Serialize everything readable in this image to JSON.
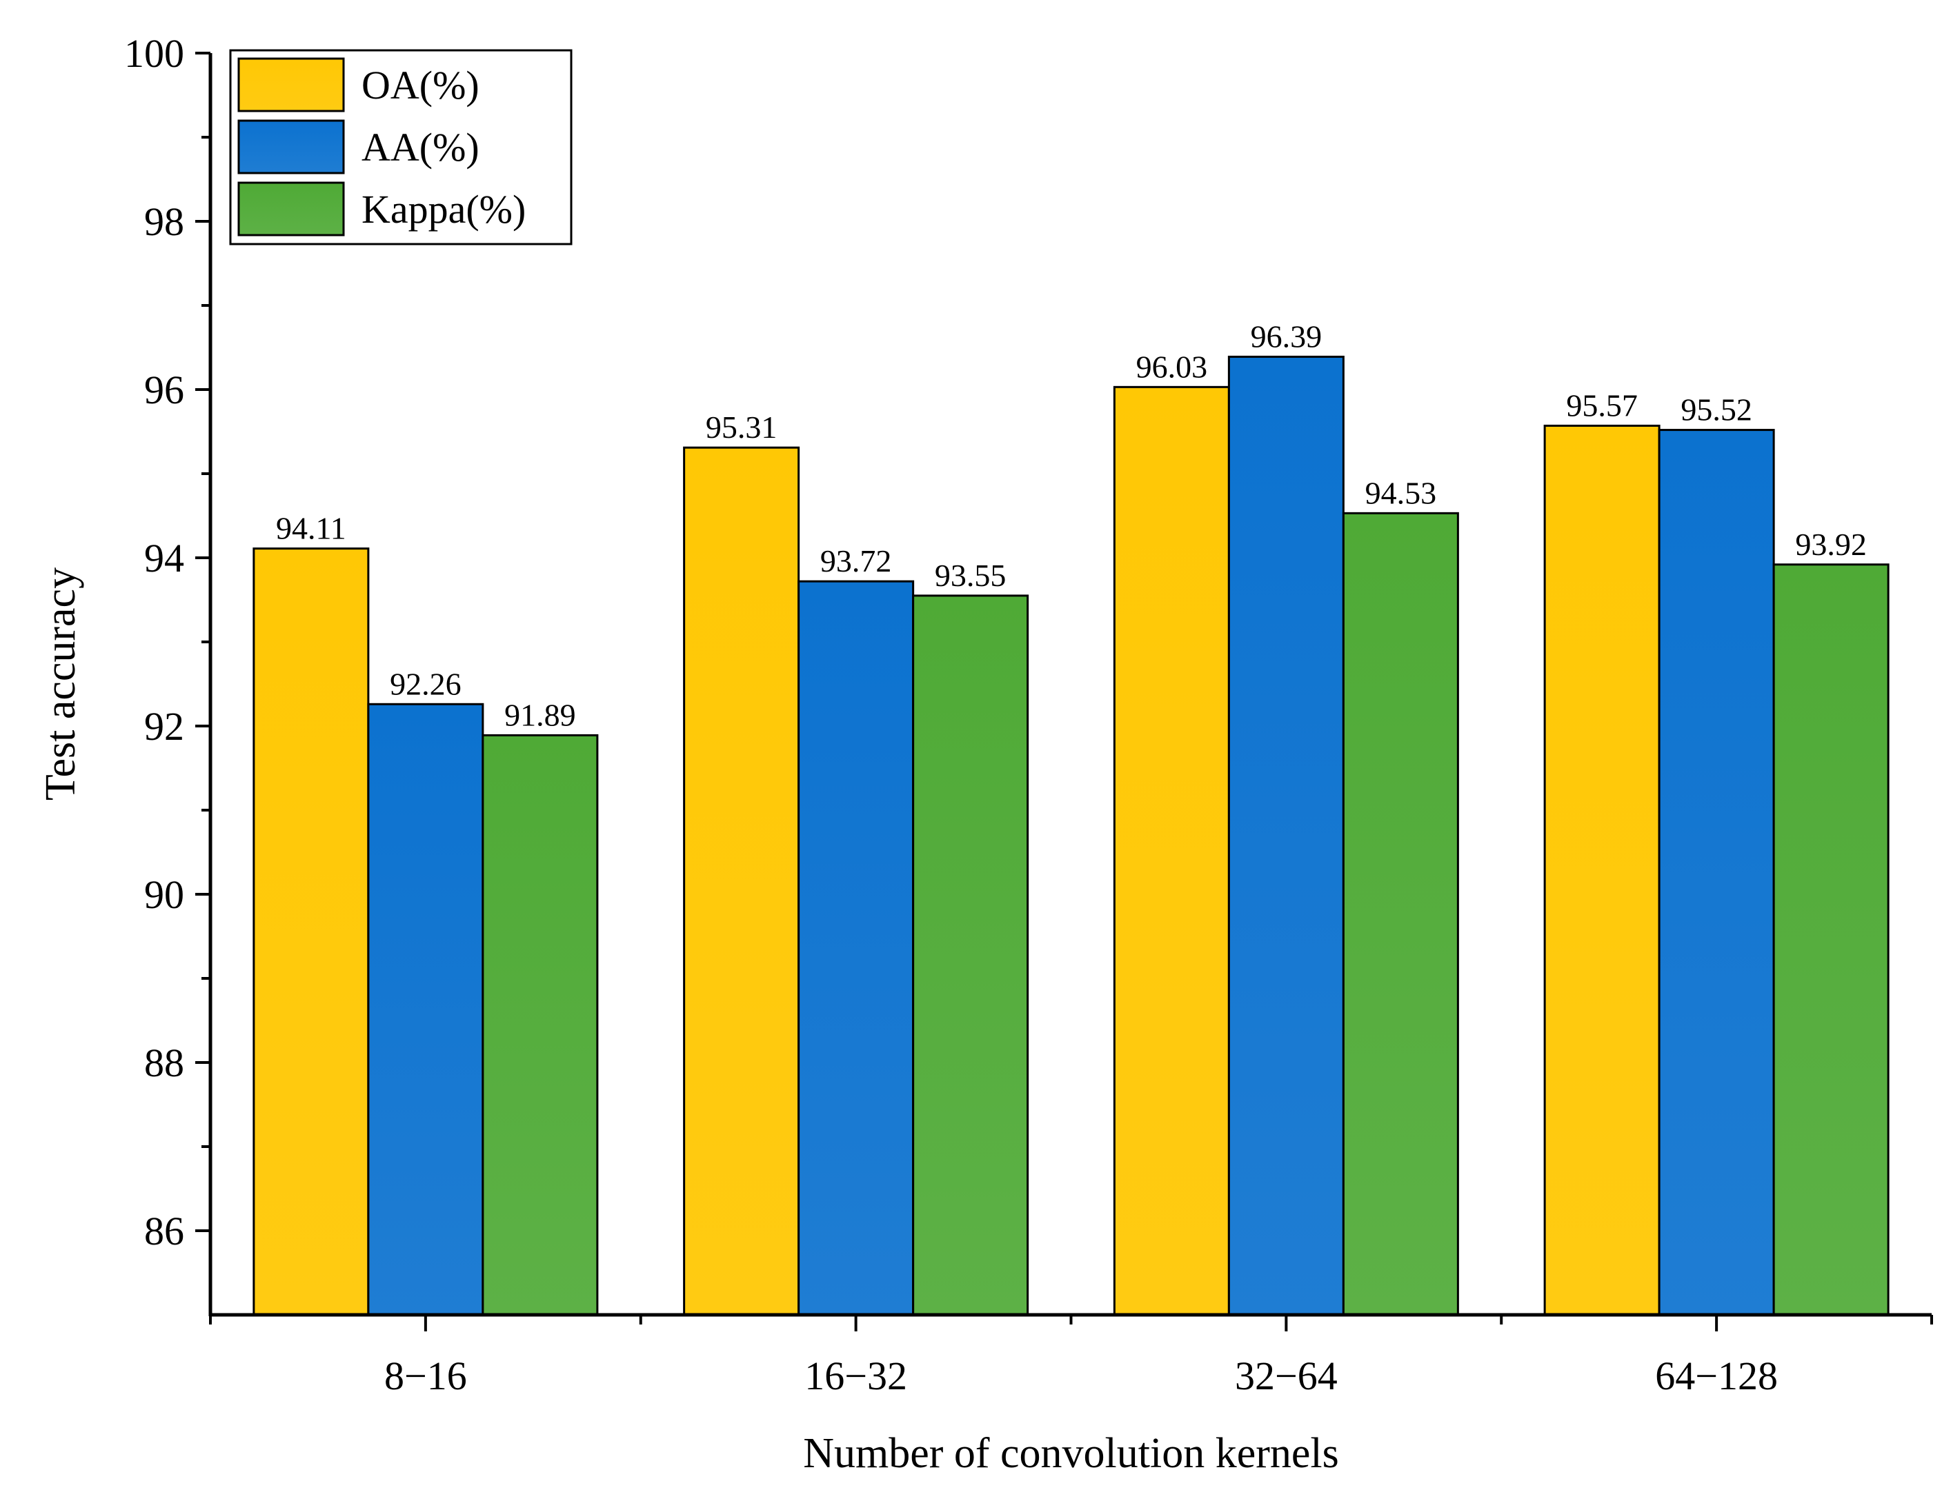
{
  "chart_data": {
    "type": "bar",
    "title": "",
    "xlabel": "Number of convolution kernels",
    "ylabel": "Test accuracy",
    "categories": [
      "8−16",
      "16−32",
      "32−64",
      "64−128"
    ],
    "series": [
      {
        "name": "OA(%)",
        "color": "#FFC805",
        "values": [
          94.11,
          95.31,
          96.03,
          95.57
        ]
      },
      {
        "name": "AA(%)",
        "color": "#0C72CF",
        "values": [
          92.26,
          93.72,
          96.39,
          95.52
        ]
      },
      {
        "name": "Kappa(%)",
        "color": "#4FAA36",
        "values": [
          91.89,
          93.55,
          94.53,
          93.92
        ]
      }
    ],
    "value_labels": [
      [
        "94.11",
        "95.31",
        "96.03",
        "95.57"
      ],
      [
        "92.26",
        "93.72",
        "96.39",
        "95.52"
      ],
      [
        "91.89",
        "93.55",
        "94.53",
        "93.92"
      ]
    ],
    "ylim": [
      85,
      100
    ],
    "yticks": [
      86,
      88,
      90,
      92,
      94,
      96,
      98,
      100
    ],
    "ytick_labels": [
      "86",
      "88",
      "90",
      "92",
      "94",
      "96",
      "98",
      "100"
    ],
    "legend_position": "top-left",
    "grid": false
  }
}
